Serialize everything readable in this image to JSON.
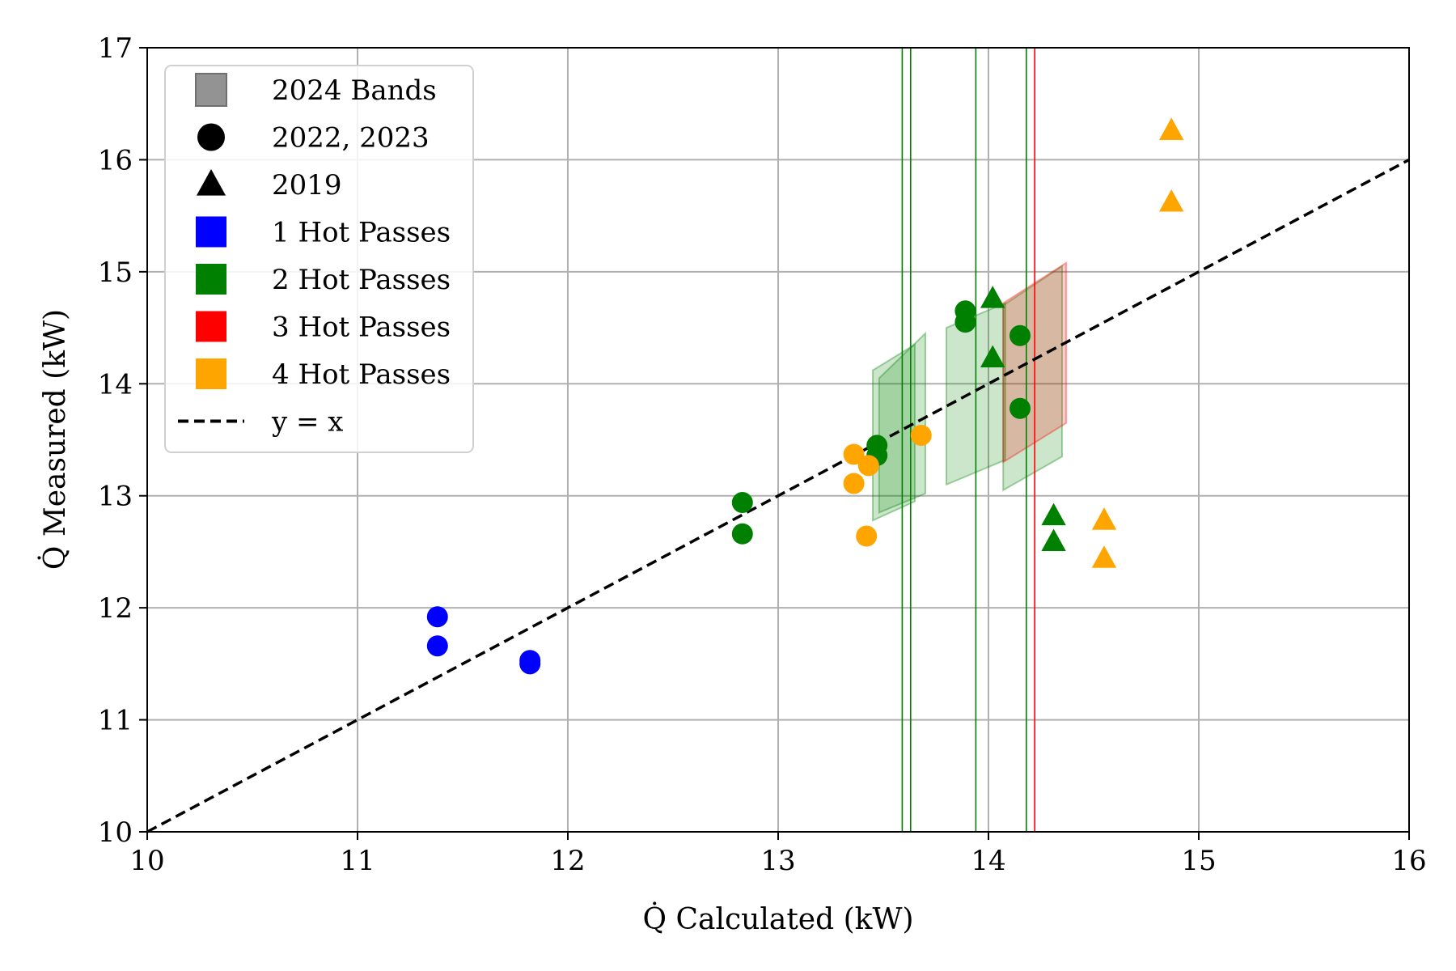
{
  "chart_data": {
    "type": "scatter",
    "title": "",
    "xlabel": "Q̇ Calculated (kW)",
    "ylabel": "Q̇ Measured (kW)",
    "xlim": [
      10,
      16
    ],
    "ylim": [
      10,
      17
    ],
    "xticks": [
      "10",
      "11",
      "12",
      "13",
      "14",
      "15",
      "16"
    ],
    "yticks": [
      "10",
      "11",
      "12",
      "13",
      "14",
      "15",
      "16",
      "17"
    ],
    "grid": true,
    "colors": {
      "1 Hot Passes": "#0000ff",
      "2 Hot Passes": "#008000",
      "3 Hot Passes": "#ff0000",
      "4 Hot Passes": "#ffa500"
    },
    "legend": {
      "position": "top-left",
      "entries": [
        {
          "label": "2024 Bands",
          "marker": "band",
          "color": "#808080"
        },
        {
          "label": "2022, 2023",
          "marker": "circle",
          "color": "#000000"
        },
        {
          "label": "2019",
          "marker": "triangle",
          "color": "#000000"
        },
        {
          "label": "1 Hot Passes",
          "marker": "square",
          "color": "#0000ff"
        },
        {
          "label": "2 Hot Passes",
          "marker": "square",
          "color": "#008000"
        },
        {
          "label": "3 Hot Passes",
          "marker": "square",
          "color": "#ff0000"
        },
        {
          "label": "4 Hot Passes",
          "marker": "square",
          "color": "#ffa500"
        },
        {
          "label": "y = x",
          "marker": "dashed-line",
          "color": "#000000"
        }
      ]
    },
    "reference_line": {
      "label": "y = x",
      "x": [
        10,
        16
      ],
      "y": [
        10,
        16
      ]
    },
    "vertical_lines": [
      {
        "x": 13.59,
        "passes": "2 Hot Passes"
      },
      {
        "x": 13.63,
        "passes": "2 Hot Passes"
      },
      {
        "x": 13.94,
        "passes": "2 Hot Passes"
      },
      {
        "x": 14.18,
        "passes": "2 Hot Passes"
      },
      {
        "x": 14.22,
        "passes": "3 Hot Passes"
      }
    ],
    "bands_2024": [
      {
        "passes": "2 Hot Passes",
        "x": [
          13.45,
          13.65
        ],
        "lower": [
          12.78,
          12.95
        ],
        "upper": [
          14.12,
          14.35
        ]
      },
      {
        "passes": "2 Hot Passes",
        "x": [
          13.48,
          13.7
        ],
        "lower": [
          12.85,
          13.02
        ],
        "upper": [
          14.05,
          14.45
        ]
      },
      {
        "passes": "2 Hot Passes",
        "x": [
          13.8,
          14.08
        ],
        "lower": [
          13.1,
          13.32
        ],
        "upper": [
          14.5,
          14.72
        ]
      },
      {
        "passes": "2 Hot Passes",
        "x": [
          14.07,
          14.35
        ],
        "lower": [
          13.05,
          13.35
        ],
        "upper": [
          14.7,
          15.05
        ]
      },
      {
        "passes": "3 Hot Passes",
        "x": [
          14.07,
          14.37
        ],
        "lower": [
          13.3,
          13.65
        ],
        "upper": [
          14.72,
          15.08
        ]
      }
    ],
    "series": [
      {
        "name": "1 Hot Passes",
        "year": "2022, 2023",
        "marker": "circle",
        "x": [
          11.38,
          11.38,
          11.82,
          11.82
        ],
        "y": [
          11.92,
          11.66,
          11.53,
          11.5
        ]
      },
      {
        "name": "2 Hot Passes",
        "year": "2022, 2023",
        "marker": "circle",
        "x": [
          12.83,
          12.83,
          13.47,
          13.47,
          13.89,
          13.89,
          14.15,
          14.15
        ],
        "y": [
          12.94,
          12.66,
          13.45,
          13.36,
          14.65,
          14.55,
          14.43,
          13.78
        ]
      },
      {
        "name": "4 Hot Passes",
        "year": "2022, 2023",
        "marker": "circle",
        "x": [
          13.36,
          13.36,
          13.43,
          13.42,
          13.68
        ],
        "y": [
          13.37,
          13.11,
          13.27,
          12.64,
          13.54
        ]
      },
      {
        "name": "2 Hot Passes",
        "year": "2019",
        "marker": "triangle",
        "x": [
          14.02,
          14.02,
          14.31,
          14.31
        ],
        "y": [
          14.76,
          14.23,
          12.82,
          12.59
        ]
      },
      {
        "name": "4 Hot Passes",
        "year": "2019",
        "marker": "triangle",
        "x": [
          14.55,
          14.55,
          14.87,
          14.87
        ],
        "y": [
          12.78,
          12.44,
          16.26,
          15.62
        ]
      }
    ]
  }
}
